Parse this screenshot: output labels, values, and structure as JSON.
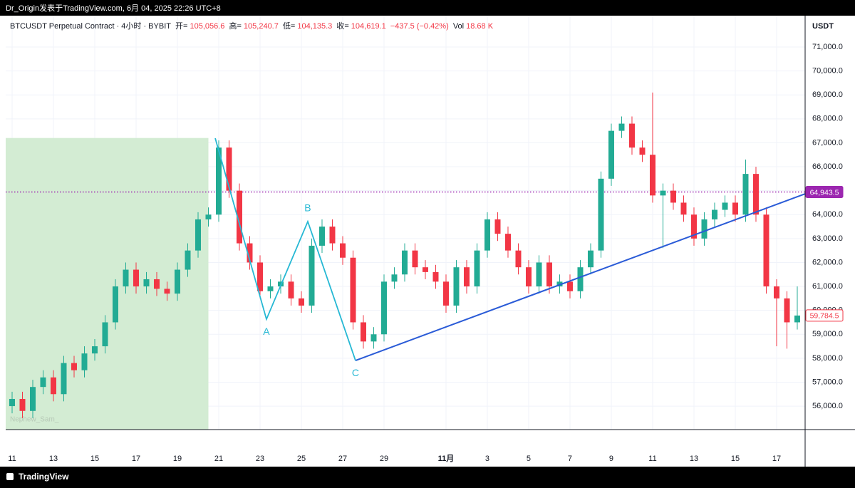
{
  "top_bar": "Dr_Origin发表于TradingView.com,  6月 04, 2025 22:26 UTC+8",
  "footer": "TradingView",
  "header": {
    "symbol": "BTCUSDT Perpetual Contract · 4小时 · BYBIT",
    "fields": [
      {
        "label": "开=",
        "value": "105,056.6"
      },
      {
        "label": "高=",
        "value": "105,240.7"
      },
      {
        "label": "低=",
        "value": "104,135.3"
      },
      {
        "label": "收=",
        "value": "104,619.1"
      }
    ],
    "change": "−437.5 (−0.42%)",
    "vol_label": "Vol",
    "vol_value": "18.68 K"
  },
  "chart_data": {
    "type": "candlestick",
    "unit": "USDT",
    "watermark": "Nephew_Sam_",
    "up_color": "#22ab94",
    "down_color": "#f23645",
    "grid": true,
    "x": [
      0,
      0.5,
      1,
      1.5,
      2,
      2.5,
      3,
      3.5,
      4,
      4.5,
      5,
      5.5,
      6,
      6.5,
      7,
      7.5,
      8,
      8.5,
      9,
      9.5,
      10,
      10.5,
      11,
      11.5,
      12,
      12.5,
      13,
      13.5,
      14,
      14.5,
      15,
      15.5,
      16,
      16.5,
      17,
      17.5,
      18,
      18.5,
      19,
      19.5,
      20,
      20.5,
      21,
      21.5,
      22,
      22.5,
      23,
      23.5,
      24,
      24.5,
      25,
      25.5,
      26,
      26.5,
      27,
      27.5,
      28,
      28.5,
      29,
      29.5,
      30,
      30.5,
      31,
      31.5,
      32,
      32.5,
      33,
      33.5,
      34,
      34.5,
      35,
      35.5,
      36,
      36.5,
      37,
      37.5,
      38
    ],
    "open": [
      56000,
      56300,
      55800,
      56800,
      57200,
      56500,
      57800,
      57500,
      58200,
      58500,
      59500,
      61000,
      61700,
      61000,
      61300,
      60900,
      60700,
      61700,
      62500,
      63800,
      64000,
      66800,
      65000,
      62800,
      62000,
      60800,
      61000,
      61200,
      60500,
      60200,
      62700,
      63500,
      62800,
      62200,
      59500,
      58700,
      59000,
      61200,
      61500,
      62500,
      61800,
      61600,
      61200,
      60200,
      61800,
      61000,
      62500,
      63800,
      63200,
      62500,
      61800,
      61000,
      62000,
      61000,
      61200,
      60800,
      61800,
      62500,
      65500,
      67500,
      67800,
      66800,
      66500,
      64800,
      65000,
      64500,
      64000,
      63000,
      63800,
      64200,
      64500,
      64000,
      65700,
      64000,
      61000,
      60500,
      59500
    ],
    "high": [
      56600,
      56600,
      57100,
      57500,
      57500,
      58100,
      58100,
      58500,
      58800,
      59800,
      61300,
      62000,
      62000,
      61600,
      61600,
      61200,
      62000,
      62800,
      64100,
      64300,
      67100,
      67100,
      65300,
      63100,
      62300,
      61300,
      61500,
      61500,
      60800,
      63000,
      63800,
      63800,
      63100,
      62500,
      59800,
      59300,
      61500,
      61800,
      62800,
      62800,
      62100,
      61900,
      61500,
      62100,
      62100,
      62800,
      64100,
      64100,
      63500,
      62800,
      62100,
      62300,
      62300,
      61500,
      61500,
      62100,
      62800,
      65800,
      67800,
      68100,
      68100,
      67100,
      69100,
      65300,
      65300,
      64800,
      64300,
      64100,
      64500,
      64800,
      64800,
      66300,
      66000,
      64300,
      61300,
      60800,
      61000
    ],
    "low": [
      55700,
      55500,
      55500,
      56500,
      56200,
      56200,
      57200,
      57200,
      57900,
      58200,
      59200,
      60700,
      60700,
      60700,
      60600,
      60400,
      60400,
      61400,
      62200,
      63500,
      63700,
      64700,
      62500,
      61700,
      60500,
      60500,
      60700,
      60200,
      59900,
      59900,
      62400,
      62500,
      61900,
      59200,
      58400,
      58400,
      58700,
      60900,
      61200,
      61500,
      61300,
      60900,
      59900,
      59900,
      60700,
      60700,
      62200,
      62900,
      62200,
      61500,
      60700,
      60700,
      60700,
      60700,
      60500,
      60500,
      61500,
      62200,
      65200,
      67200,
      66500,
      66200,
      64500,
      62600,
      64200,
      63700,
      62700,
      62700,
      63500,
      63900,
      63700,
      63700,
      63700,
      60700,
      58500,
      58400,
      59200
    ],
    "close": [
      56300,
      55800,
      56800,
      57200,
      56500,
      57800,
      57500,
      58200,
      58500,
      59500,
      61000,
      61700,
      61000,
      61300,
      60900,
      60700,
      61700,
      62500,
      63800,
      64000,
      66800,
      65000,
      62800,
      62000,
      60800,
      61000,
      61200,
      60500,
      60200,
      62700,
      63500,
      62800,
      62200,
      59500,
      58700,
      59000,
      61200,
      61500,
      62500,
      61800,
      61600,
      61200,
      60200,
      61800,
      61000,
      62500,
      63800,
      63200,
      62500,
      61800,
      61000,
      62000,
      61000,
      61200,
      60800,
      61800,
      62500,
      65500,
      67500,
      67800,
      66800,
      66500,
      64800,
      65000,
      64500,
      64000,
      63000,
      63800,
      64200,
      64500,
      64000,
      65700,
      64000,
      61000,
      60500,
      59500,
      59784.5
    ],
    "xlim": [
      -0.31,
      38.38
    ],
    "xticks": [
      {
        "value": 0,
        "label": "11"
      },
      {
        "value": 2,
        "label": "13"
      },
      {
        "value": 4,
        "label": "15"
      },
      {
        "value": 6,
        "label": "17"
      },
      {
        "value": 8,
        "label": "19"
      },
      {
        "value": 10,
        "label": "21"
      },
      {
        "value": 12,
        "label": "23"
      },
      {
        "value": 14,
        "label": "25"
      },
      {
        "value": 16,
        "label": "27"
      },
      {
        "value": 18,
        "label": "29"
      },
      {
        "value": 21,
        "label": "11月"
      },
      {
        "value": 23,
        "label": "3"
      },
      {
        "value": 25,
        "label": "5"
      },
      {
        "value": 27,
        "label": "7"
      },
      {
        "value": 29,
        "label": "9"
      },
      {
        "value": 31,
        "label": "11"
      },
      {
        "value": 33,
        "label": "13"
      },
      {
        "value": 35,
        "label": "15"
      },
      {
        "value": 37,
        "label": "17"
      }
    ],
    "ylim": [
      55020,
      72310
    ],
    "yticks": [
      {
        "value": 56000,
        "label": "56,000.0"
      },
      {
        "value": 57000,
        "label": "57,000.0"
      },
      {
        "value": 58000,
        "label": "58,000.0"
      },
      {
        "value": 59000,
        "label": "59,000.0"
      },
      {
        "value": 60000,
        "label": "60,000.0"
      },
      {
        "value": 61000,
        "label": "61,000.0"
      },
      {
        "value": 62000,
        "label": "62,000.0"
      },
      {
        "value": 63000,
        "label": "63,000.0"
      },
      {
        "value": 64000,
        "label": "64,000.0"
      },
      {
        "value": 65000,
        "label": "65,000.0"
      },
      {
        "value": 66000,
        "label": "66,000.0"
      },
      {
        "value": 67000,
        "label": "67,000.0"
      },
      {
        "value": 68000,
        "label": "68,000.0"
      },
      {
        "value": 69000,
        "label": "69,000.0"
      },
      {
        "value": 70000,
        "label": "70,000.0"
      },
      {
        "value": 71000,
        "label": "71,000.0"
      }
    ],
    "box": {
      "x": [
        -0.31,
        9.5
      ],
      "y": [
        55020,
        67200
      ],
      "color": "#d3ecd3"
    },
    "pattern": {
      "color": "#26b8d4",
      "x": [
        9.83,
        12.31,
        14.31,
        16.62
      ],
      "y": [
        67190,
        59630,
        63710,
        57905
      ],
      "labels": [
        null,
        "A",
        "B",
        "C"
      ]
    },
    "trend_line": {
      "color": "#2a5bd7",
      "x": [
        16.62,
        38.38
      ],
      "y": [
        57905,
        64870
      ]
    },
    "hline": {
      "value": 64943.5,
      "label": "64,943.5",
      "color": "#9c27b0"
    },
    "last_price": {
      "value": 59784.5,
      "label": "59,784.5",
      "color": "#f23645"
    }
  }
}
